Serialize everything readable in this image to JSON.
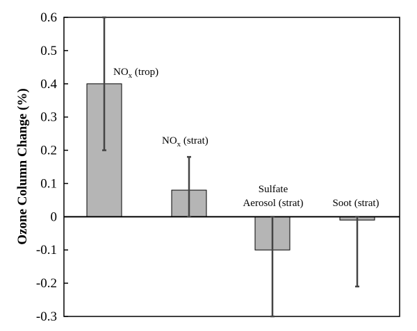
{
  "chart_data": {
    "type": "bar",
    "ylabel": "Ozone Column Change (%)",
    "ylim": [
      -0.3,
      0.6
    ],
    "yticks": [
      "0.6",
      "0.5",
      "0.4",
      "0.3",
      "0.2",
      "0.1",
      "0",
      "-0.1",
      "-0.2",
      "-0.3"
    ],
    "grid": false,
    "bar_color": "#b5b5b5",
    "bars": [
      {
        "label_main": "NO",
        "label_sub": "x",
        "label_rest": " (trop)",
        "value": 0.4,
        "err_low": 0.2,
        "err_high": 0.6
      },
      {
        "label_main": "NO",
        "label_sub": "x",
        "label_rest": " (strat)",
        "value": 0.08,
        "err_low": 0.0,
        "err_high": 0.18
      },
      {
        "label_line1": "Sulfate",
        "label_line2": "Aerosol (strat)",
        "value": -0.1,
        "err_low": -0.3,
        "err_high": 0.0
      },
      {
        "label": "Soot (strat)",
        "value": -0.01,
        "err_low": -0.21,
        "err_high": 0.0
      }
    ]
  }
}
